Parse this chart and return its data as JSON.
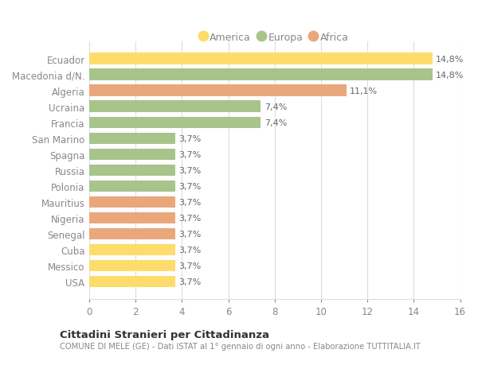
{
  "categories": [
    "USA",
    "Messico",
    "Cuba",
    "Senegal",
    "Nigeria",
    "Mauritius",
    "Polonia",
    "Russia",
    "Spagna",
    "San Marino",
    "Francia",
    "Ucraina",
    "Algeria",
    "Macedonia d/N.",
    "Ecuador"
  ],
  "values": [
    3.7,
    3.7,
    3.7,
    3.7,
    3.7,
    3.7,
    3.7,
    3.7,
    3.7,
    3.7,
    7.4,
    7.4,
    11.1,
    14.8,
    14.8
  ],
  "colors": [
    "#FDDC6C",
    "#FDDC6C",
    "#FDDC6C",
    "#E8A87C",
    "#E8A87C",
    "#E8A87C",
    "#A8C48A",
    "#A8C48A",
    "#A8C48A",
    "#A8C48A",
    "#A8C48A",
    "#A8C48A",
    "#E8A87C",
    "#A8C48A",
    "#FDDC6C"
  ],
  "labels": [
    "3,7%",
    "3,7%",
    "3,7%",
    "3,7%",
    "3,7%",
    "3,7%",
    "3,7%",
    "3,7%",
    "3,7%",
    "3,7%",
    "7,4%",
    "7,4%",
    "11,1%",
    "14,8%",
    "14,8%"
  ],
  "legend": [
    {
      "label": "America",
      "color": "#FDDC6C"
    },
    {
      "label": "Europa",
      "color": "#A8C48A"
    },
    {
      "label": "Africa",
      "color": "#E8A87C"
    }
  ],
  "xlim": [
    0,
    16
  ],
  "xticks": [
    0,
    2,
    4,
    6,
    8,
    10,
    12,
    14,
    16
  ],
  "title1": "Cittadini Stranieri per Cittadinanza",
  "title2": "COMUNE DI MELE (GE) - Dati ISTAT al 1° gennaio di ogni anno - Elaborazione TUTTITALIA.IT",
  "background_color": "#FFFFFF",
  "grid_color": "#DDDDDD",
  "text_color": "#888888",
  "label_color": "#666666"
}
